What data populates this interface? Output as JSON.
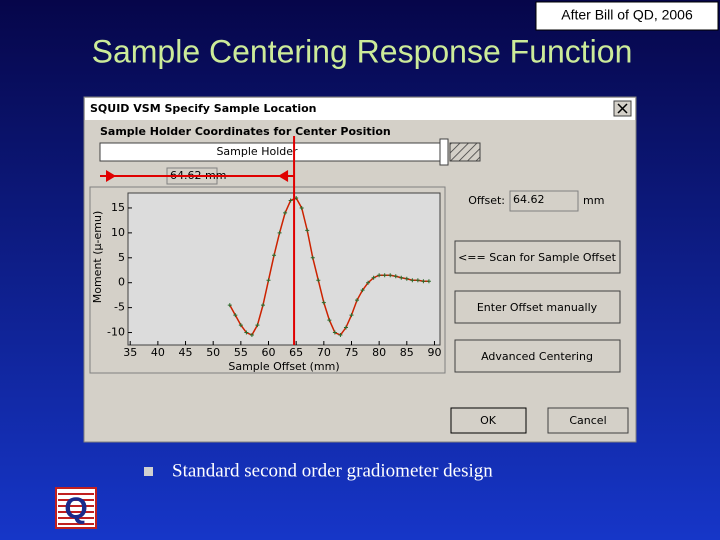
{
  "corner_note": "After Bill of QD, 2006",
  "title": "Sample Centering Response Function",
  "dialog": {
    "title": "SQUID VSM Specify Sample Location",
    "group_label": "Sample Holder Coordinates for Center Position",
    "holder_label": "Sample Holder",
    "offset_marker": "64.62 mm",
    "offset_label": "Offset:",
    "offset_value": 64.62,
    "offset_unit": "mm",
    "buttons": {
      "scan": "<== Scan for Sample Offset",
      "manual": "Enter Offset manually",
      "advanced": "Advanced Centering",
      "ok": "OK",
      "cancel": "Cancel"
    }
  },
  "chart": {
    "type": "line",
    "x_label": "Sample Offset (mm)",
    "y_label": "Moment (µ-emu)",
    "x": [
      53,
      54,
      55,
      56,
      57,
      58,
      59,
      60,
      61,
      62,
      63,
      64,
      65,
      66,
      67,
      68,
      69,
      70,
      71,
      72,
      73,
      74,
      75,
      76,
      77,
      78,
      79,
      80,
      81,
      82,
      83,
      84,
      85,
      86,
      87,
      88,
      89
    ],
    "values": [
      -4.5,
      -6.5,
      -8.5,
      -10,
      -10.5,
      -8.5,
      -4.5,
      0.5,
      5.5,
      10,
      14,
      16.5,
      17,
      15,
      10.5,
      5,
      0.5,
      -4,
      -7.5,
      -10,
      -10.5,
      -9,
      -6.5,
      -3.5,
      -1.5,
      0,
      1,
      1.5,
      1.5,
      1.5,
      1.3,
      1,
      0.8,
      0.5,
      0.5,
      0.3,
      0.3
    ],
    "color": "#cc2200",
    "marker_color": "#2a6a2a",
    "xlim": [
      34.6,
      91
    ],
    "ylim": [
      -12.5,
      18
    ],
    "xticks": [
      35,
      40,
      45,
      50,
      55,
      60,
      65,
      70,
      75,
      80,
      85,
      90
    ],
    "yticks": [
      -10,
      -5,
      0,
      5,
      10,
      15
    ]
  },
  "bullets": [
    "Standard second order gradiometer design"
  ]
}
